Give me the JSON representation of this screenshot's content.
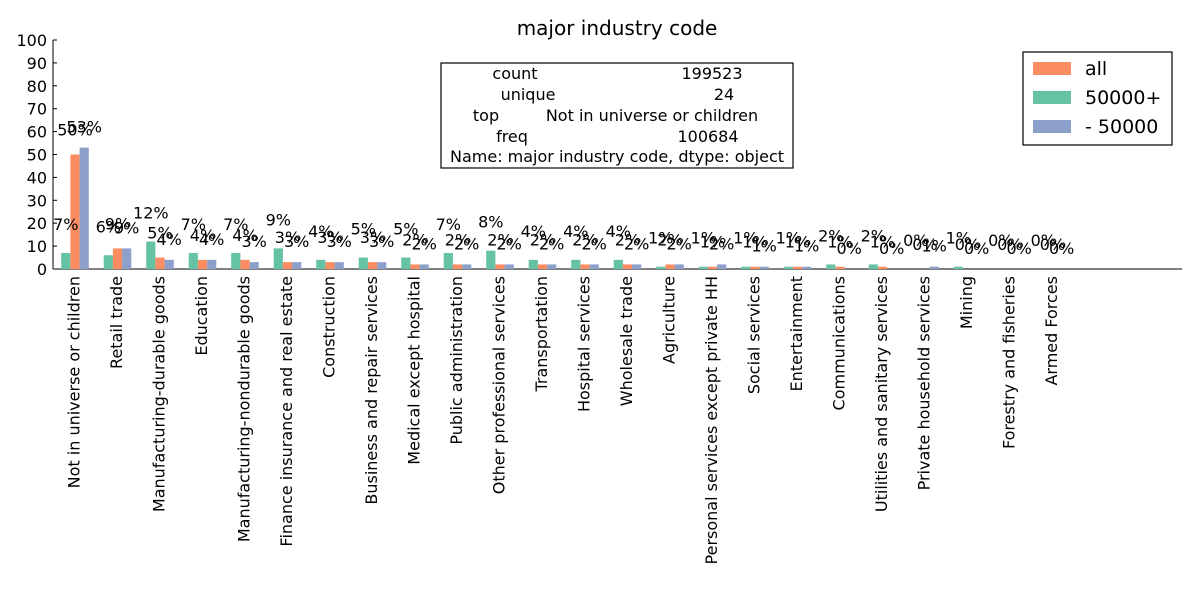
{
  "chart_data": {
    "type": "bar",
    "title": "major industry code",
    "xlabel": "",
    "ylabel": "",
    "ylim": [
      0,
      100
    ],
    "yticks": [
      0,
      10,
      20,
      30,
      40,
      50,
      60,
      70,
      80,
      90,
      100
    ],
    "grid": false,
    "legend_position": "top-right",
    "categories": [
      "Not in universe or children",
      "Retail trade",
      "Manufacturing-durable goods",
      "Education",
      "Manufacturing-nondurable goods",
      "Finance insurance and real estate",
      "Construction",
      "Business and repair services",
      "Medical except hospital",
      "Public administration",
      "Other professional services",
      "Transportation",
      "Hospital services",
      "Wholesale trade",
      "Agriculture",
      "Personal services except private HH",
      "Social services",
      "Entertainment",
      "Communications",
      "Utilities and sanitary services",
      "Private household services",
      "Mining",
      "Forestry and fisheries",
      "Armed Forces"
    ],
    "series": [
      {
        "name": "50000+",
        "color": "#66c2a5",
        "values": [
          7,
          6,
          12,
          7,
          7,
          9,
          4,
          5,
          5,
          7,
          8,
          4,
          4,
          4,
          1,
          1,
          1,
          1,
          2,
          2,
          0,
          1,
          0,
          0
        ],
        "labels": [
          "7%",
          "6%",
          "12%",
          "7%",
          "7%",
          "9%",
          "4%",
          "5%",
          "5%",
          "7%",
          "8%",
          "4%",
          "4%",
          "4%",
          "1%",
          "1%",
          "1%",
          "1%",
          "2%",
          "2%",
          "0%",
          "1%",
          "0%",
          "0%"
        ]
      },
      {
        "name": "all",
        "color": "#fc8d62",
        "values": [
          50,
          9,
          5,
          4,
          4,
          3,
          3,
          3,
          2,
          2,
          2,
          2,
          2,
          2,
          2,
          1,
          1,
          1,
          1,
          1,
          0,
          0,
          0,
          0
        ],
        "labels": [
          "50%",
          "9%",
          "5%",
          "4%",
          "4%",
          "3%",
          "3%",
          "3%",
          "2%",
          "2%",
          "2%",
          "2%",
          "2%",
          "2%",
          "2%",
          "1%",
          "1%",
          "1%",
          "1%",
          "1%",
          "0%",
          "0%",
          "0%",
          "0%"
        ]
      },
      {
        "name": "- 50000",
        "color": "#8da0cb",
        "values": [
          53,
          9,
          4,
          4,
          3,
          3,
          3,
          3,
          2,
          2,
          2,
          2,
          2,
          2,
          2,
          2,
          1,
          1,
          0,
          0,
          1,
          0,
          0,
          0
        ],
        "labels": [
          "53%",
          "9%",
          "4%",
          "4%",
          "3%",
          "3%",
          "3%",
          "3%",
          "2%",
          "2%",
          "2%",
          "2%",
          "2%",
          "2%",
          "2%",
          "2%",
          "1%",
          "1%",
          "0%",
          "0%",
          "1%",
          "0%",
          "0%",
          "0%"
        ]
      }
    ],
    "legend_order": [
      "all",
      "50000+",
      "- 50000"
    ],
    "annotation": {
      "lines": [
        [
          "count",
          "199523"
        ],
        [
          "unique",
          "24"
        ],
        [
          "top",
          "Not in universe or children"
        ],
        [
          "freq",
          "100684"
        ]
      ],
      "footer": "Name: major industry code, dtype: object"
    }
  }
}
